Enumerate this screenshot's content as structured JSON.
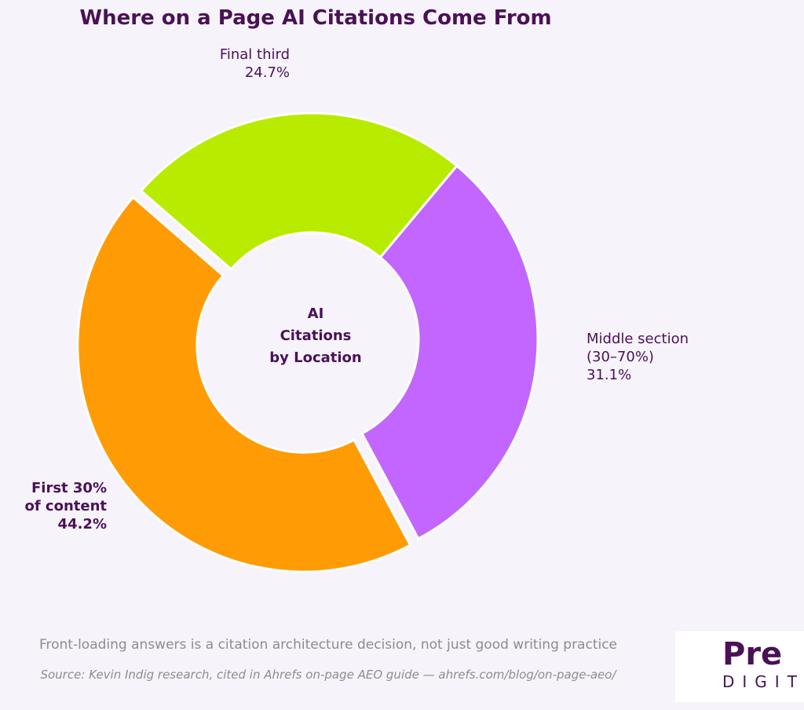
{
  "chart_data": {
    "type": "pie",
    "title": "Where on a Page AI Citations Come From",
    "center_text": "AI\nCitations\nby Location",
    "categories": [
      "First 30%\nof content",
      "Middle section\n(30–70%)",
      "Final third"
    ],
    "values": [
      44.2,
      31.1,
      24.7
    ],
    "value_labels": [
      "44.2%",
      "31.1%",
      "24.7%"
    ],
    "colors": [
      "#ff9b05",
      "#c266ff",
      "#b8eb00"
    ],
    "note": "Front-loading answers is a citation architecture decision, not just good writing practice",
    "source": "Source: Kevin Indig research, cited in Ahrefs on-page AEO guide — ahrefs.com/blog/on-page-aeo/"
  },
  "logo": {
    "name": "Pre",
    "tagline": "DIGIT"
  }
}
